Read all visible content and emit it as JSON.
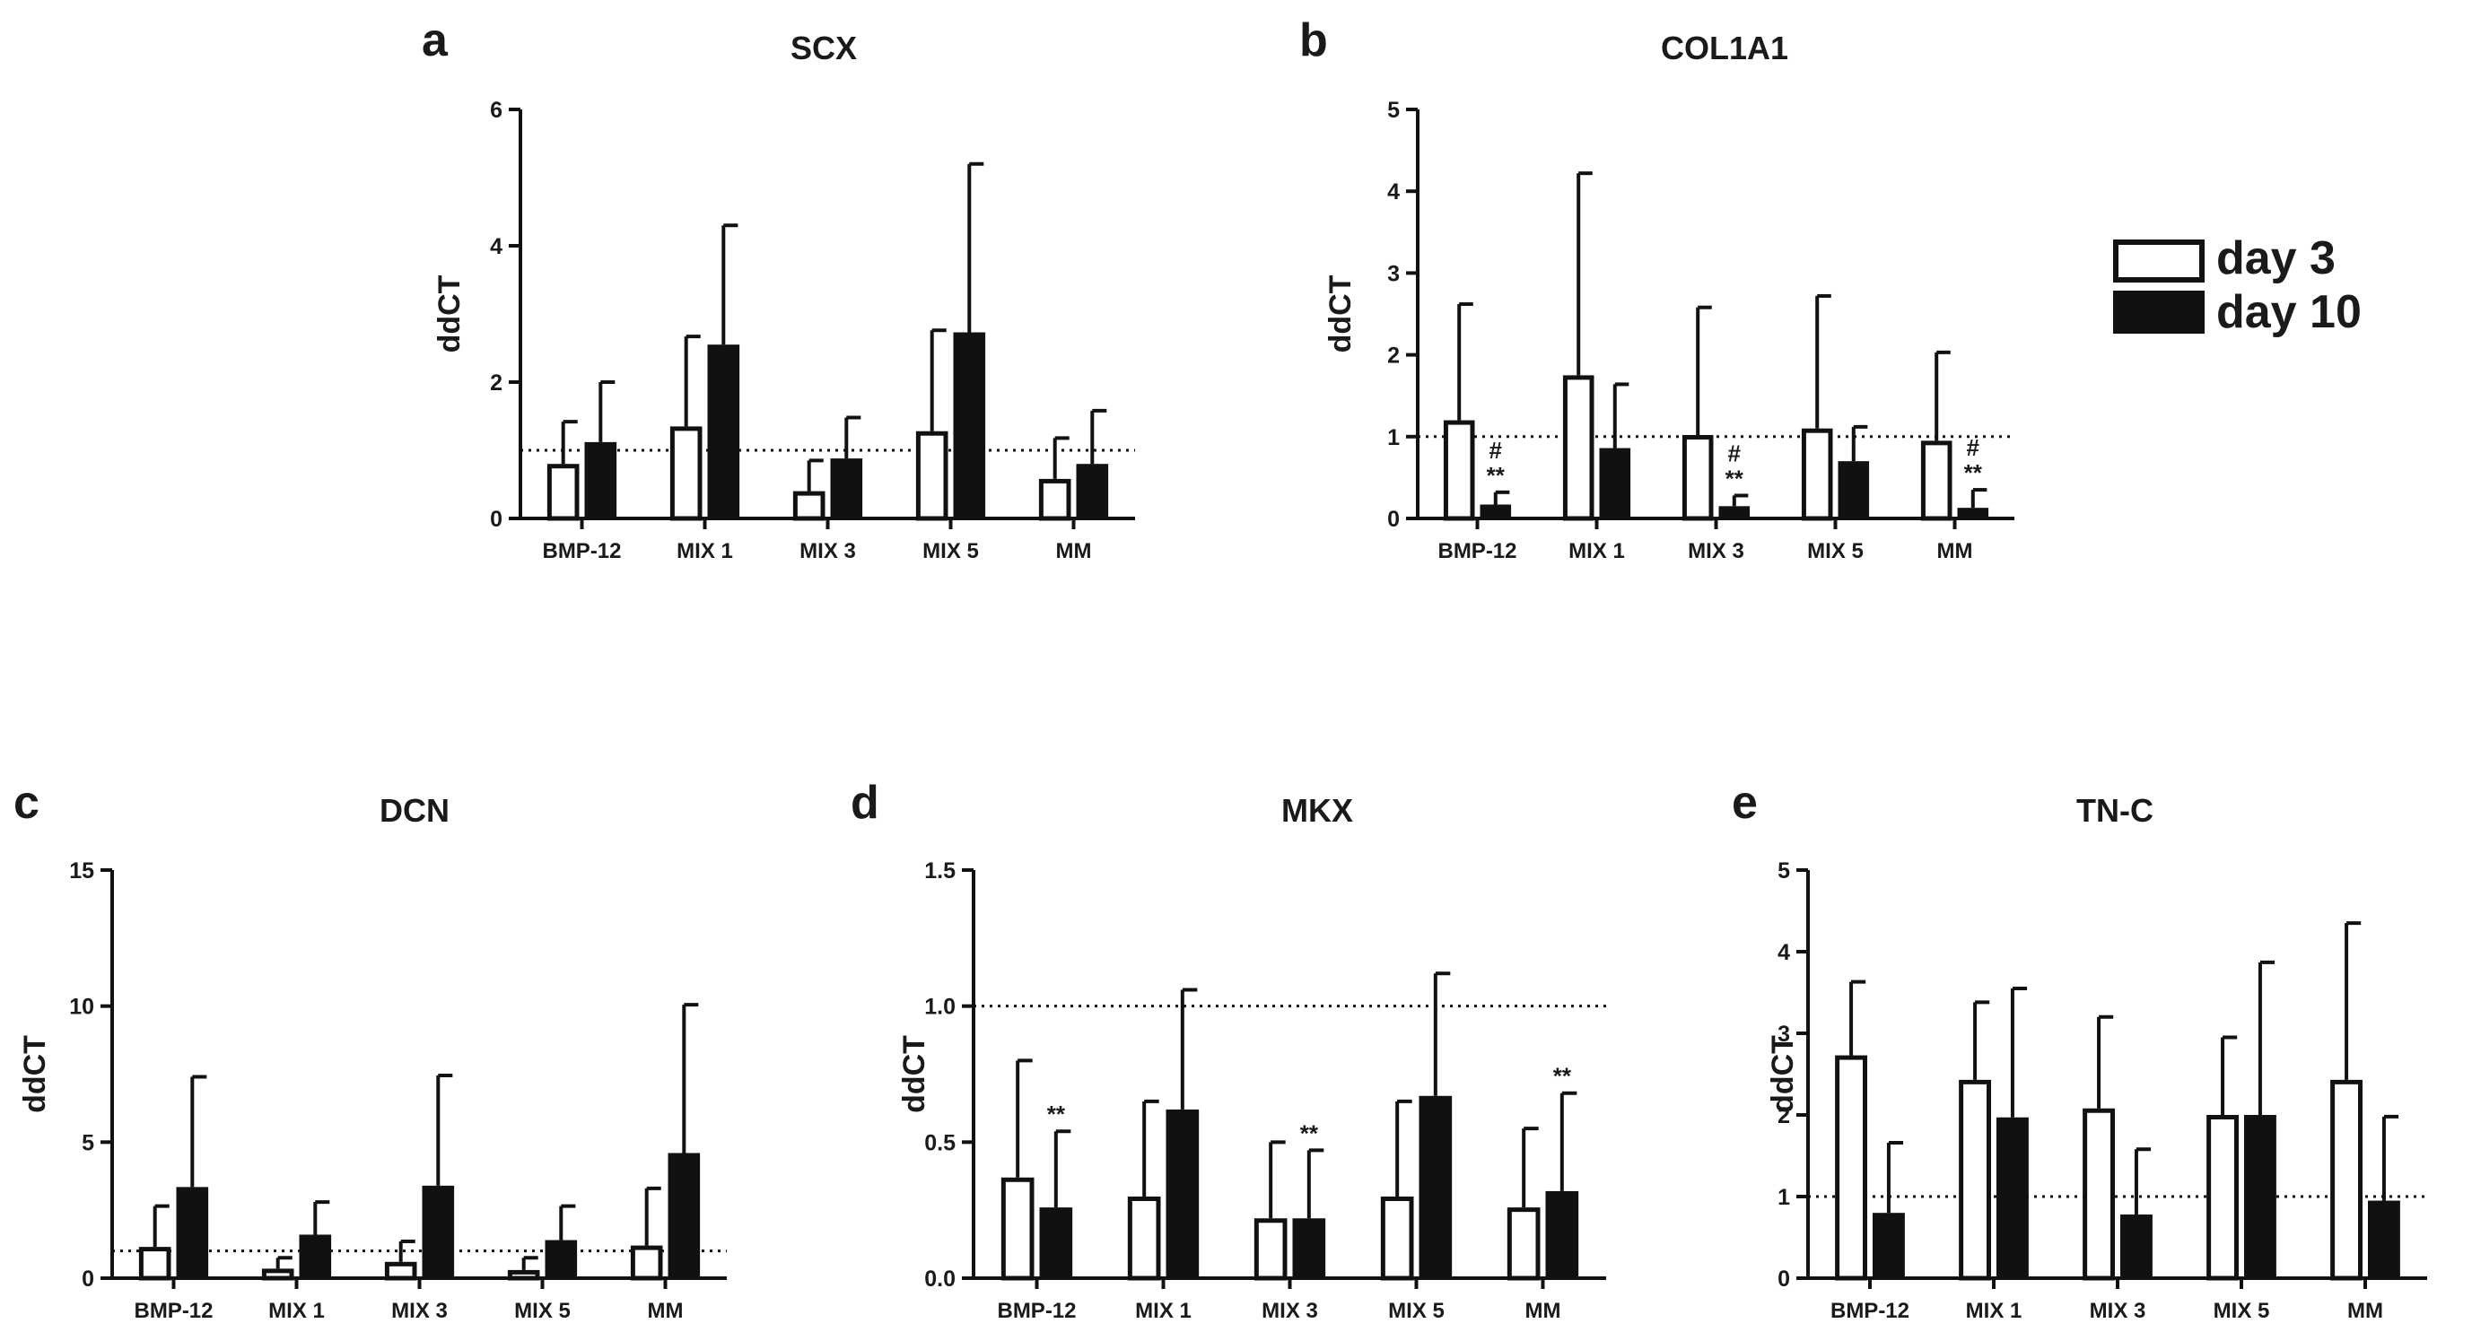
{
  "legend": {
    "series": [
      {
        "name": "day 3",
        "fill": "#ffffff"
      },
      {
        "name": "day 10",
        "fill": "#111111"
      }
    ]
  },
  "chart_data": [
    {
      "type": "bar",
      "letter": "a",
      "title": "SCX",
      "ylabel": "ddCT",
      "categories": [
        "BMP-12",
        "MIX 1",
        "MIX 3",
        "MIX 5",
        "MM"
      ],
      "ylim": [
        0,
        6
      ],
      "yticks": [
        "0",
        "2",
        "4",
        "6"
      ],
      "reference_line": 1,
      "series": [
        {
          "name": "day 3",
          "values": [
            0.8,
            1.35,
            0.4,
            1.28,
            0.58
          ],
          "errors": [
            0.62,
            1.32,
            0.45,
            1.48,
            0.6
          ],
          "sig": [
            "",
            "",
            "",
            "",
            ""
          ]
        },
        {
          "name": "day 10",
          "values": [
            1.12,
            2.55,
            0.88,
            2.73,
            0.8
          ],
          "errors": [
            0.88,
            1.75,
            0.6,
            2.47,
            0.78
          ],
          "sig": [
            "",
            "",
            "",
            "",
            ""
          ]
        }
      ]
    },
    {
      "type": "bar",
      "letter": "b",
      "title": "COL1A1",
      "ylabel": "ddCT",
      "categories": [
        "BMP-12",
        "MIX 1",
        "MIX 3",
        "MIX 5",
        "MM"
      ],
      "ylim": [
        0,
        5
      ],
      "yticks": [
        "0",
        "1",
        "2",
        "3",
        "4",
        "5"
      ],
      "reference_line": 1,
      "series": [
        {
          "name": "day 3",
          "values": [
            1.2,
            1.75,
            1.02,
            1.1,
            0.95
          ],
          "errors": [
            1.42,
            2.47,
            1.56,
            1.62,
            1.08
          ],
          "sig": [
            "",
            "",
            "",
            "",
            ""
          ]
        },
        {
          "name": "day 10",
          "values": [
            0.17,
            0.86,
            0.15,
            0.7,
            0.13
          ],
          "errors": [
            0.15,
            0.78,
            0.13,
            0.42,
            0.22
          ],
          "sig": [
            "**",
            "",
            "**",
            "",
            "**"
          ],
          "sig2": [
            "#",
            "",
            "#",
            "",
            "#"
          ]
        }
      ]
    },
    {
      "type": "bar",
      "letter": "c",
      "title": "DCN",
      "ylabel": "ddCT",
      "categories": [
        "BMP-12",
        "MIX 1",
        "MIX 3",
        "MIX 5",
        "MM"
      ],
      "ylim": [
        0,
        15
      ],
      "yticks": [
        "0",
        "5",
        "10",
        "15"
      ],
      "reference_line": 1,
      "series": [
        {
          "name": "day 3",
          "values": [
            1.15,
            0.35,
            0.6,
            0.3,
            1.2
          ],
          "errors": [
            1.5,
            0.4,
            0.75,
            0.45,
            2.1
          ],
          "sig": [
            "",
            "",
            "",
            "",
            ""
          ]
        },
        {
          "name": "day 10",
          "values": [
            3.35,
            1.6,
            3.4,
            1.4,
            4.6
          ],
          "errors": [
            4.05,
            1.2,
            4.05,
            1.25,
            5.45
          ],
          "sig": [
            "",
            "",
            "",
            "",
            ""
          ]
        }
      ]
    },
    {
      "type": "bar",
      "letter": "d",
      "title": "MKX",
      "ylabel": "ddCT",
      "categories": [
        "BMP-12",
        "MIX 1",
        "MIX 3",
        "MIX 5",
        "MM"
      ],
      "ylim": [
        0,
        1.5
      ],
      "yticks": [
        "0.0",
        "0.5",
        "1.0",
        "1.5"
      ],
      "reference_line": 1,
      "series": [
        {
          "name": "day 3",
          "values": [
            0.37,
            0.3,
            0.22,
            0.3,
            0.26
          ],
          "errors": [
            0.43,
            0.35,
            0.28,
            0.35,
            0.29
          ],
          "sig": [
            "",
            "",
            "",
            "",
            ""
          ]
        },
        {
          "name": "day 10",
          "values": [
            0.26,
            0.62,
            0.22,
            0.67,
            0.32
          ],
          "errors": [
            0.28,
            0.44,
            0.25,
            0.45,
            0.36
          ],
          "sig": [
            "**",
            "",
            "**",
            "",
            "**"
          ]
        }
      ]
    },
    {
      "type": "bar",
      "letter": "e",
      "title": "TN-C",
      "ylabel": "ddCT",
      "categories": [
        "BMP-12",
        "MIX 1",
        "MIX 3",
        "MIX 5",
        "MM"
      ],
      "ylim": [
        0,
        5
      ],
      "yticks": [
        "0",
        "1",
        "2",
        "3",
        "4",
        "5"
      ],
      "reference_line": 1,
      "series": [
        {
          "name": "day 3",
          "values": [
            2.73,
            2.43,
            2.08,
            2.0,
            2.43
          ],
          "errors": [
            0.9,
            0.95,
            1.12,
            0.95,
            1.92
          ],
          "sig": [
            "",
            "",
            "",
            "",
            ""
          ]
        },
        {
          "name": "day 10",
          "values": [
            0.8,
            1.97,
            0.78,
            2.0,
            0.95
          ],
          "errors": [
            0.86,
            1.58,
            0.8,
            1.87,
            1.03
          ],
          "sig": [
            "",
            "",
            "",
            "",
            ""
          ]
        }
      ]
    }
  ]
}
